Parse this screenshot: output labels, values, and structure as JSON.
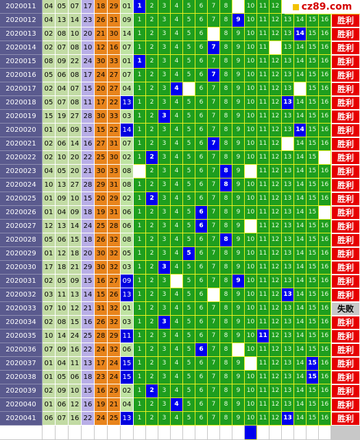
{
  "site": {
    "logo_text": "cz89.com"
  },
  "colors": {
    "win": "#e60000",
    "lose": "#c8c8c8",
    "hit": "#0000ee",
    "grid": "#1e9e1e",
    "issue": "#5a5a8e"
  },
  "position_labels": [
    "1",
    "2",
    "3",
    "4",
    "5",
    "6",
    "7",
    "8",
    "9",
    "10",
    "11",
    "12",
    "13",
    "14",
    "15",
    "16"
  ],
  "rows": [
    {
      "issue": "2020011",
      "nums": [
        "04",
        "05",
        "07",
        "17",
        "18",
        "29",
        "01"
      ],
      "special": false,
      "hit": 1,
      "blanks": [
        9
      ],
      "result": ""
    },
    {
      "issue": "2020012",
      "nums": [
        "04",
        "13",
        "14",
        "23",
        "26",
        "31",
        "09"
      ],
      "special": false,
      "hit": 9,
      "blanks": [],
      "result": "胜利"
    },
    {
      "issue": "2020013",
      "nums": [
        "02",
        "08",
        "10",
        "20",
        "21",
        "30",
        "14"
      ],
      "special": false,
      "hit": 14,
      "blanks": [
        7
      ],
      "result": "胜利"
    },
    {
      "issue": "2020014",
      "nums": [
        "02",
        "07",
        "08",
        "10",
        "12",
        "16",
        "07"
      ],
      "special": false,
      "hit": 7,
      "blanks": [
        12
      ],
      "result": "胜利"
    },
    {
      "issue": "2020015",
      "nums": [
        "08",
        "09",
        "22",
        "24",
        "30",
        "33",
        "01"
      ],
      "special": false,
      "hit": 1,
      "blanks": [],
      "result": "胜利"
    },
    {
      "issue": "2020016",
      "nums": [
        "05",
        "06",
        "08",
        "17",
        "24",
        "27",
        "07"
      ],
      "special": false,
      "hit": 7,
      "blanks": [],
      "result": "胜利"
    },
    {
      "issue": "2020017",
      "nums": [
        "02",
        "04",
        "07",
        "15",
        "20",
        "27",
        "04"
      ],
      "special": false,
      "hit": 4,
      "blanks": [
        5,
        14
      ],
      "result": "胜利"
    },
    {
      "issue": "2020018",
      "nums": [
        "05",
        "07",
        "08",
        "11",
        "17",
        "22",
        "13"
      ],
      "special": true,
      "hit": 13,
      "blanks": [],
      "result": "胜利"
    },
    {
      "issue": "2020019",
      "nums": [
        "15",
        "19",
        "27",
        "28",
        "30",
        "33",
        "03"
      ],
      "special": false,
      "hit": 3,
      "blanks": [],
      "result": "胜利"
    },
    {
      "issue": "2020020",
      "nums": [
        "01",
        "06",
        "09",
        "13",
        "15",
        "22",
        "14"
      ],
      "special": true,
      "hit": 14,
      "blanks": [],
      "result": "胜利"
    },
    {
      "issue": "2020021",
      "nums": [
        "02",
        "06",
        "14",
        "16",
        "27",
        "31",
        "07"
      ],
      "special": false,
      "hit": 7,
      "blanks": [
        13
      ],
      "result": "胜利"
    },
    {
      "issue": "2020022",
      "nums": [
        "02",
        "10",
        "20",
        "22",
        "25",
        "30",
        "02"
      ],
      "special": false,
      "hit": 2,
      "blanks": [
        16
      ],
      "result": "胜利"
    },
    {
      "issue": "2020023",
      "nums": [
        "04",
        "05",
        "20",
        "21",
        "30",
        "33",
        "08"
      ],
      "special": false,
      "hit": 8,
      "blanks": [
        1,
        10
      ],
      "result": "胜利"
    },
    {
      "issue": "2020024",
      "nums": [
        "10",
        "13",
        "27",
        "28",
        "29",
        "31",
        "08"
      ],
      "special": false,
      "hit": 8,
      "blanks": [],
      "result": "胜利"
    },
    {
      "issue": "2020025",
      "nums": [
        "01",
        "09",
        "10",
        "15",
        "20",
        "29",
        "02"
      ],
      "special": false,
      "hit": 2,
      "blanks": [],
      "result": "胜利"
    },
    {
      "issue": "2020026",
      "nums": [
        "01",
        "04",
        "09",
        "18",
        "19",
        "31",
        "06"
      ],
      "special": false,
      "hit": 6,
      "blanks": [
        16
      ],
      "result": "胜利"
    },
    {
      "issue": "2020027",
      "nums": [
        "12",
        "13",
        "14",
        "24",
        "25",
        "28",
        "06"
      ],
      "special": false,
      "hit": 6,
      "blanks": [
        10
      ],
      "result": "胜利"
    },
    {
      "issue": "2020028",
      "nums": [
        "05",
        "06",
        "15",
        "18",
        "26",
        "32",
        "08"
      ],
      "special": false,
      "hit": 8,
      "blanks": [],
      "result": "胜利"
    },
    {
      "issue": "2020029",
      "nums": [
        "01",
        "12",
        "18",
        "20",
        "30",
        "32",
        "05"
      ],
      "special": false,
      "hit": 5,
      "blanks": [],
      "result": "胜利"
    },
    {
      "issue": "2020030",
      "nums": [
        "17",
        "18",
        "21",
        "29",
        "30",
        "32",
        "03"
      ],
      "special": false,
      "hit": 3,
      "blanks": [],
      "result": "胜利"
    },
    {
      "issue": "2020031",
      "nums": [
        "02",
        "05",
        "09",
        "15",
        "16",
        "27",
        "09"
      ],
      "special": true,
      "hit": 9,
      "blanks": [
        4
      ],
      "result": "胜利"
    },
    {
      "issue": "2020032",
      "nums": [
        "03",
        "11",
        "13",
        "14",
        "15",
        "26",
        "13"
      ],
      "special": true,
      "hit": 13,
      "blanks": [
        7
      ],
      "result": "胜利"
    },
    {
      "issue": "2020033",
      "nums": [
        "07",
        "10",
        "12",
        "21",
        "31",
        "32",
        "01"
      ],
      "special": false,
      "hit": 0,
      "blanks": [],
      "result": "失败"
    },
    {
      "issue": "2020034",
      "nums": [
        "02",
        "08",
        "15",
        "16",
        "26",
        "32",
        "03"
      ],
      "special": false,
      "hit": 3,
      "blanks": [],
      "result": "胜利"
    },
    {
      "issue": "2020035",
      "nums": [
        "10",
        "14",
        "24",
        "25",
        "28",
        "29",
        "11"
      ],
      "special": true,
      "hit": 11,
      "blanks": [],
      "result": "胜利"
    },
    {
      "issue": "2020036",
      "nums": [
        "07",
        "09",
        "16",
        "22",
        "24",
        "32",
        "06"
      ],
      "special": false,
      "hit": 6,
      "blanks": [
        9
      ],
      "result": "胜利"
    },
    {
      "issue": "2020037",
      "nums": [
        "01",
        "04",
        "11",
        "13",
        "17",
        "24",
        "15"
      ],
      "special": true,
      "hit": 15,
      "blanks": [
        10
      ],
      "result": "胜利"
    },
    {
      "issue": "2020038",
      "nums": [
        "01",
        "05",
        "06",
        "18",
        "23",
        "24",
        "15"
      ],
      "special": true,
      "hit": 15,
      "blanks": [],
      "result": "胜利"
    },
    {
      "issue": "2020039",
      "nums": [
        "02",
        "09",
        "10",
        "15",
        "16",
        "29",
        "02"
      ],
      "special": false,
      "hit": 2,
      "blanks": [],
      "result": "胜利"
    },
    {
      "issue": "2020040",
      "nums": [
        "01",
        "06",
        "12",
        "16",
        "19",
        "21",
        "04"
      ],
      "special": false,
      "hit": 4,
      "blanks": [],
      "result": "胜利"
    },
    {
      "issue": "2020041",
      "nums": [
        "06",
        "07",
        "16",
        "22",
        "24",
        "25",
        "13"
      ],
      "special": true,
      "hit": 13,
      "blanks": [],
      "result": "胜利"
    }
  ],
  "next_row": {
    "hit": 10
  }
}
